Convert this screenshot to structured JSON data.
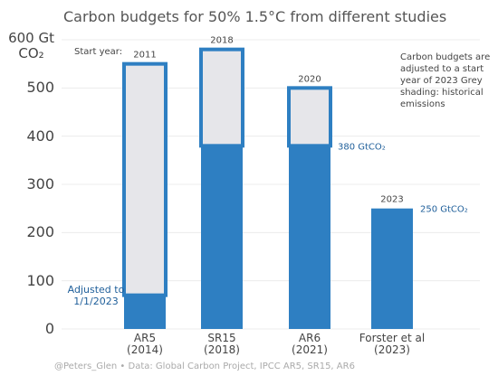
{
  "chart_data": {
    "type": "stacked-bar",
    "title": "Carbon budgets for 50% 1.5°C from different studies",
    "categories": [
      "AR5\n(2014)",
      "SR15\n(2018)",
      "AR6\n(2021)",
      "Forster et al\n(2023)"
    ],
    "series": [
      {
        "color": "#2e7fc2",
        "values": [
          70,
          380,
          380,
          250
        ],
        "value_labels": [
          null,
          null,
          "380 GtCO₂",
          "250 GtCO₂"
        ]
      },
      {
        "color": "#e6e6ea",
        "values": [
          480,
          200,
          120,
          0
        ]
      }
    ],
    "start_years": [
      "2011",
      "2018",
      "2020",
      "2023"
    ],
    "start_year_label": "Start year:",
    "adjusted_note": "Adjusted to\n1/1/2023",
    "side_note": "Carbon budgets are adjusted to a start year of 2023 Grey shading: historical emissions",
    "footer": "@Peters_Glen  • Data: Global Carbon Project, IPCC AR5, SR15, AR6",
    "ylim": [
      0,
      600
    ],
    "yticks": [
      0,
      100,
      200,
      300,
      400,
      500,
      {
        "value": 600,
        "label": "600 Gt\nCO₂"
      }
    ],
    "grid": true
  }
}
